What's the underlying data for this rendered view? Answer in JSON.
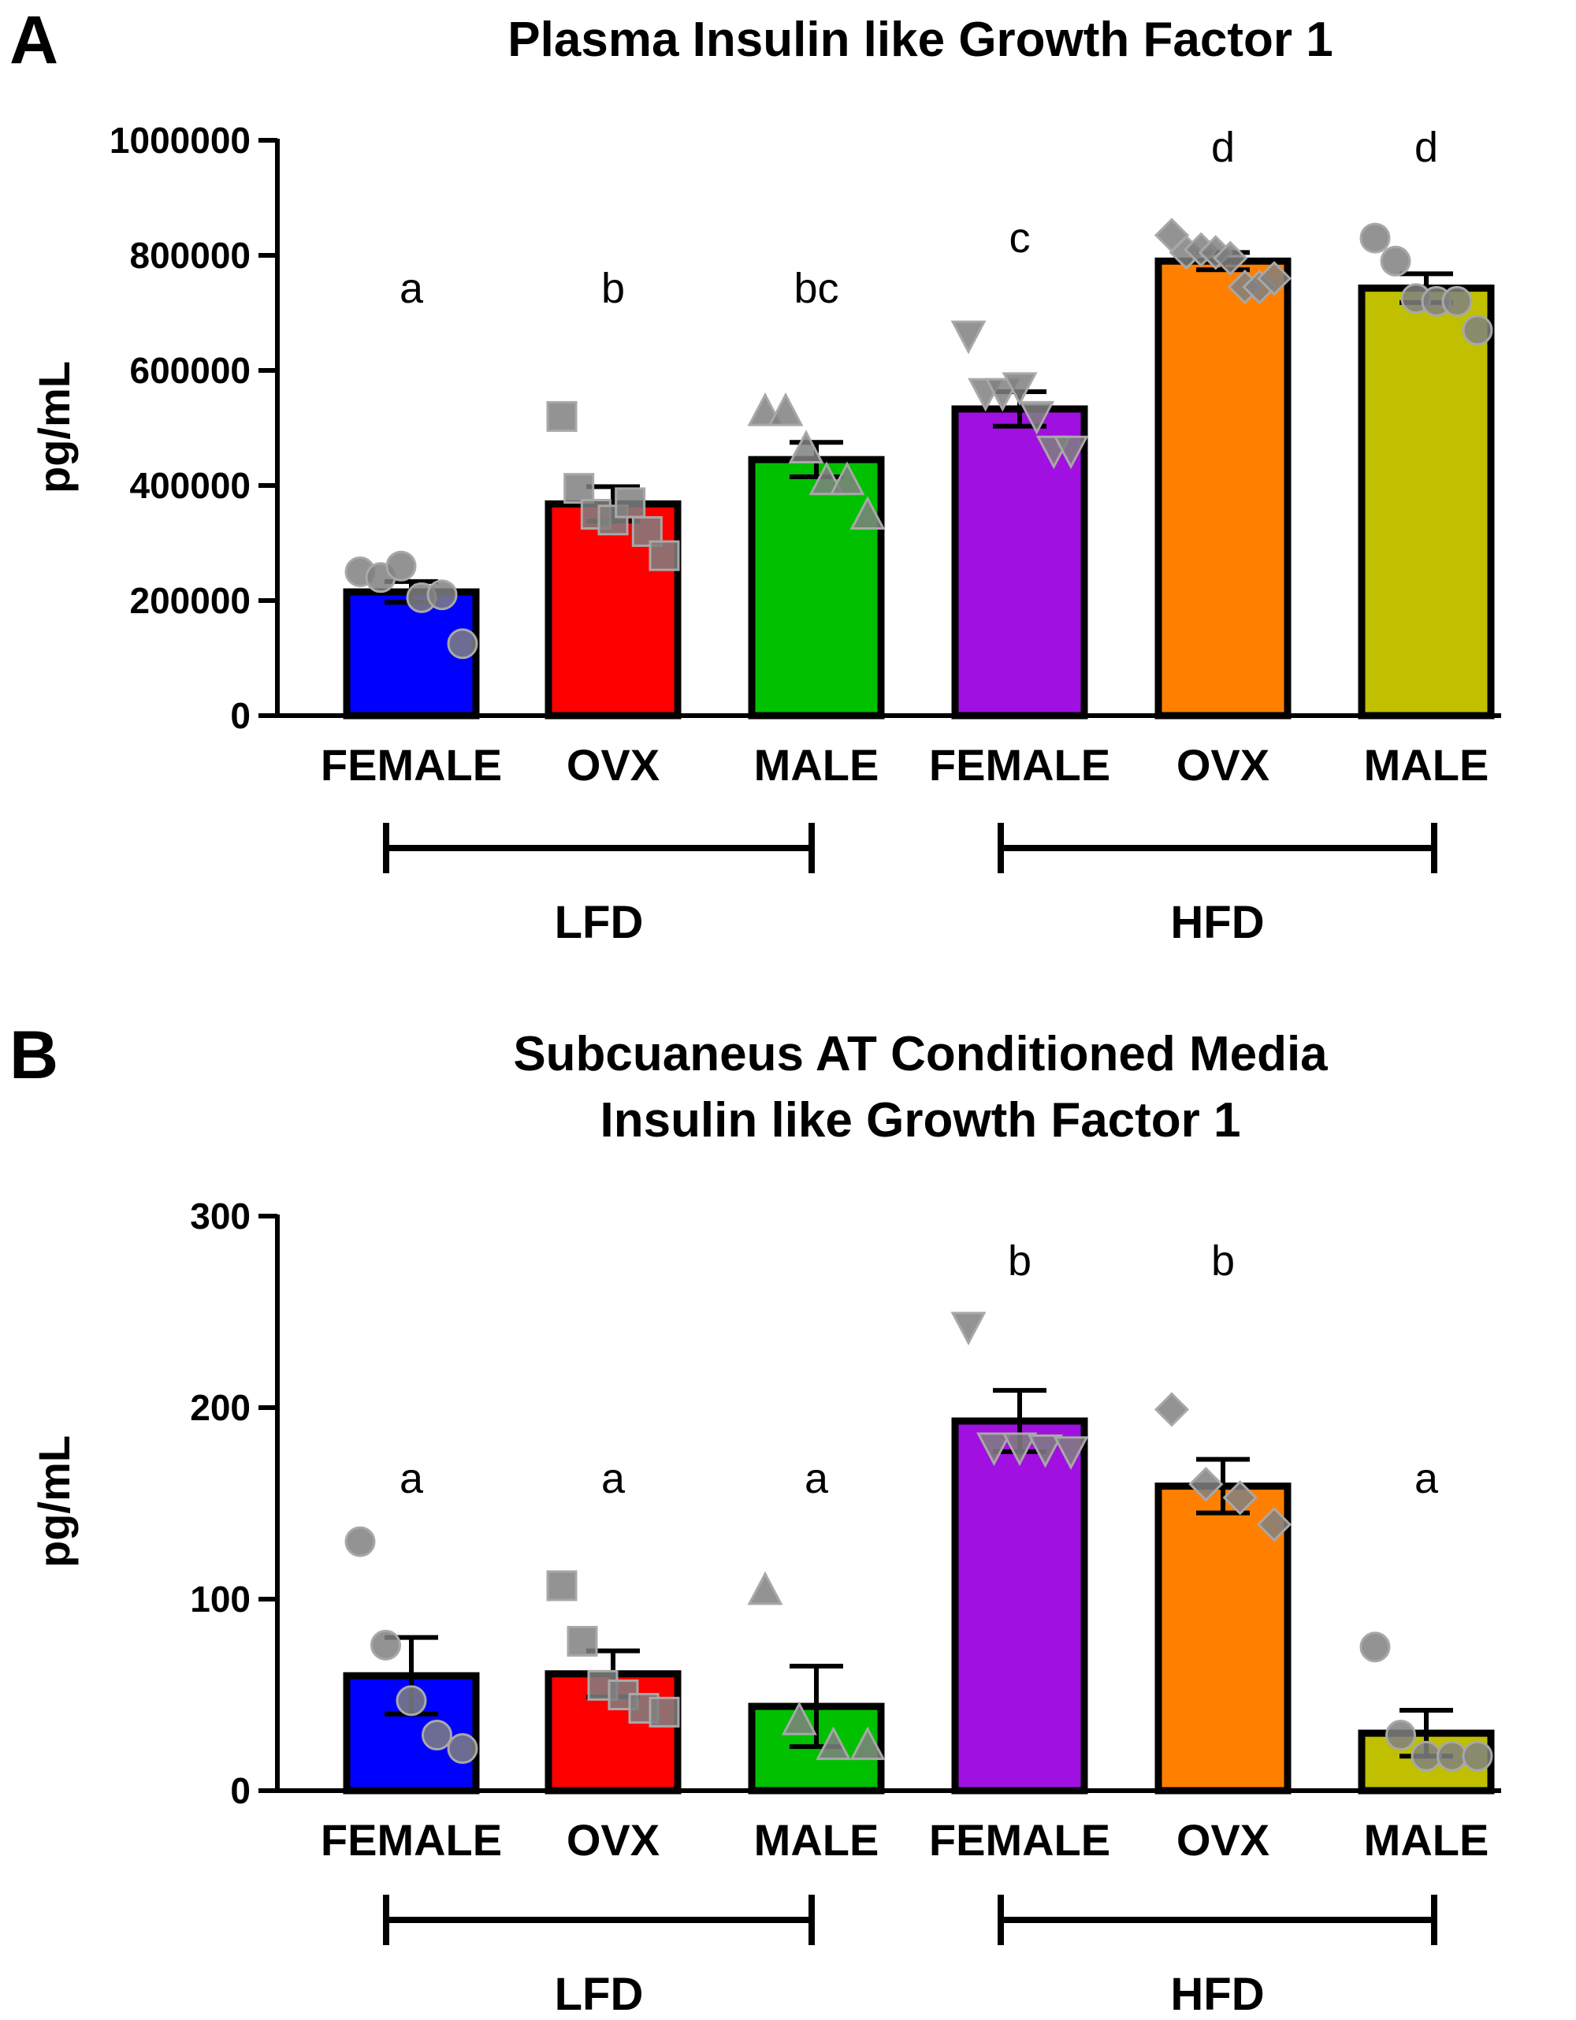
{
  "chart_data": [
    {
      "panel": "A",
      "type": "bar",
      "title": "Plasma Insulin like  Growth  Factor 1",
      "ylabel": "pg/mL",
      "ylim": [
        0,
        1000000
      ],
      "yticks": [
        "0",
        "200000",
        "400000",
        "600000",
        "800000",
        "1000000"
      ],
      "categories": [
        "FEMALE",
        "OVX",
        "MALE",
        "FEMALE",
        "OVX",
        "MALE"
      ],
      "groups": [
        {
          "label": "LFD",
          "categories": [
            0,
            1,
            2
          ]
        },
        {
          "label": "HFD",
          "categories": [
            3,
            4,
            5
          ]
        }
      ],
      "bars": [
        {
          "mean": 215000,
          "sem": 18000,
          "color": "#0000ff",
          "marker": "circle",
          "letter": "a",
          "points": [
            250000,
            240000,
            260000,
            205000,
            210000,
            125000
          ]
        },
        {
          "mean": 368000,
          "sem": 30000,
          "color": "#ff0000",
          "marker": "square",
          "letter": "b",
          "points": [
            520000,
            395000,
            350000,
            340000,
            370000,
            320000,
            278000
          ]
        },
        {
          "mean": 445000,
          "sem": 30000,
          "color": "#00c000",
          "marker": "triangle-up",
          "letter": "bc",
          "points": [
            530000,
            530000,
            465000,
            410000,
            410000,
            350000
          ]
        },
        {
          "mean": 533000,
          "sem": 30000,
          "color": "#a010e0",
          "marker": "triangle-down",
          "letter": "c",
          "points": [
            660000,
            560000,
            560000,
            570000,
            520000,
            460000,
            460000
          ]
        },
        {
          "mean": 790000,
          "sem": 15000,
          "color": "#ff8000",
          "marker": "diamond",
          "letter": "d",
          "points": [
            835000,
            805000,
            810000,
            805000,
            795000,
            745000,
            745000,
            760000
          ]
        },
        {
          "mean": 743000,
          "sem": 25000,
          "color": "#c0c000",
          "marker": "circle",
          "letter": "d",
          "points": [
            830000,
            790000,
            725000,
            720000,
            720000,
            670000
          ]
        }
      ]
    },
    {
      "panel": "B",
      "type": "bar",
      "title": [
        "Subcuaneus AT Conditioned Media",
        "Insulin like  Growth  Factor 1"
      ],
      "ylabel": "pg/mL",
      "ylim": [
        0,
        300
      ],
      "yticks": [
        "0",
        "100",
        "200",
        "300"
      ],
      "categories": [
        "FEMALE",
        "OVX",
        "MALE",
        "FEMALE",
        "OVX",
        "MALE"
      ],
      "groups": [
        {
          "label": "LFD",
          "categories": [
            0,
            1,
            2
          ]
        },
        {
          "label": "HFD",
          "categories": [
            3,
            4,
            5
          ]
        }
      ],
      "bars": [
        {
          "mean": 60,
          "sem": 20,
          "color": "#0000ff",
          "marker": "circle",
          "letter": "a",
          "points": [
            130,
            76,
            47,
            29,
            22
          ]
        },
        {
          "mean": 61,
          "sem": 12,
          "color": "#ff0000",
          "marker": "square",
          "letter": "a",
          "points": [
            107,
            78,
            55,
            50,
            43,
            41
          ]
        },
        {
          "mean": 44,
          "sem": 21,
          "color": "#00c000",
          "marker": "triangle-up",
          "letter": "a",
          "points": [
            105,
            37,
            24,
            24
          ]
        },
        {
          "mean": 193,
          "sem": 16,
          "color": "#a010e0",
          "marker": "triangle-down",
          "letter": "b",
          "points": [
            242,
            179,
            179,
            178,
            177
          ]
        },
        {
          "mean": 159,
          "sem": 14,
          "color": "#ff8000",
          "marker": "diamond",
          "letter": "b",
          "points": [
            199,
            160,
            153,
            139
          ]
        },
        {
          "mean": 30,
          "sem": 12,
          "color": "#c0c000",
          "marker": "circle",
          "letter": "a",
          "points": [
            75,
            29,
            18,
            18,
            18
          ]
        }
      ]
    }
  ]
}
